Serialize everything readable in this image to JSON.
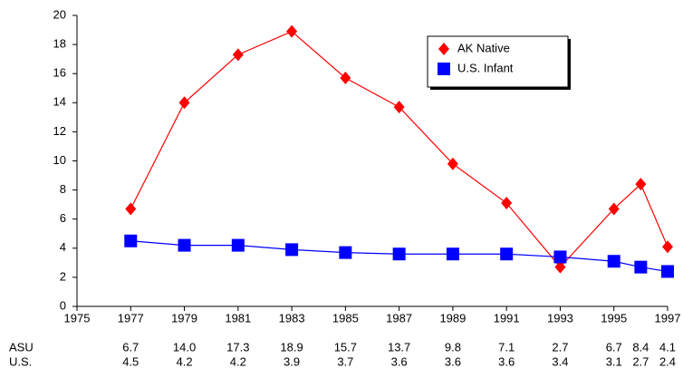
{
  "chart_data": {
    "type": "line",
    "x": [
      1977,
      1979,
      1981,
      1983,
      1985,
      1987,
      1989,
      1991,
      1993,
      1995,
      1996,
      1997
    ],
    "series": [
      {
        "name": "AK Native",
        "color": "#ff0000",
        "marker": "diamond",
        "values": [
          6.7,
          14.0,
          17.3,
          18.9,
          15.7,
          13.7,
          9.8,
          7.1,
          2.7,
          6.7,
          8.4,
          4.1
        ],
        "value_labels": [
          "6.7",
          "14.0",
          "17.3",
          "18.9",
          "15.7",
          "13.7",
          "9.8",
          "7.1",
          "2.7",
          "6.7",
          "8.4",
          "4.1"
        ],
        "row_label": "ASU"
      },
      {
        "name": "U.S. Infant",
        "color": "#0000ff",
        "marker": "square",
        "values": [
          4.5,
          4.2,
          4.2,
          3.9,
          3.7,
          3.6,
          3.6,
          3.6,
          3.4,
          3.1,
          2.7,
          2.4
        ],
        "value_labels": [
          "4.5",
          "4.2",
          "4.2",
          "3.9",
          "3.7",
          "3.6",
          "3.6",
          "3.6",
          "3.4",
          "3.1",
          "2.7",
          "2.4"
        ],
        "row_label": "U.S."
      }
    ],
    "xlim": [
      1975,
      1997
    ],
    "xticks": [
      1975,
      1977,
      1979,
      1981,
      1983,
      1985,
      1987,
      1989,
      1991,
      1993,
      1995,
      1997
    ],
    "ylim": [
      0,
      20
    ],
    "yticks": [
      0,
      2,
      4,
      6,
      8,
      10,
      12,
      14,
      16,
      18,
      20
    ],
    "grid": false,
    "legend": "upper-right"
  }
}
